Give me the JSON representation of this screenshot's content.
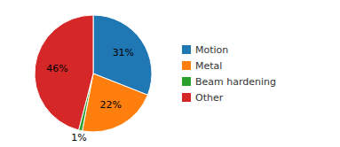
{
  "chart_data": {
    "type": "pie",
    "categories": [
      "Motion",
      "Metal",
      "Beam hardening",
      "Other"
    ],
    "values": [
      31,
      22,
      1,
      46
    ],
    "value_labels": [
      "31%",
      "22%",
      "1%",
      "46%"
    ],
    "data_labels": true,
    "legend": "right"
  }
}
